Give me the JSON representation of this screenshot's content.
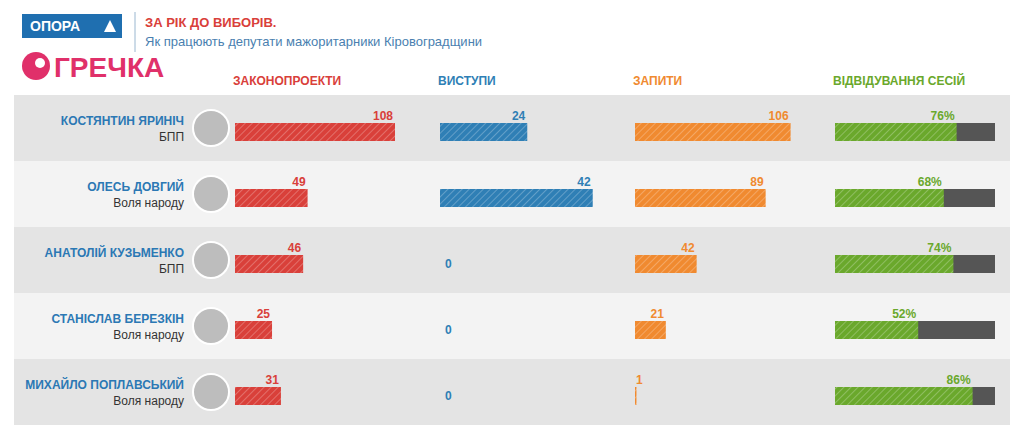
{
  "header": {
    "logo": "ОПОРА",
    "watermark": "ГРЕЧКА",
    "title": "ЗА РІК ДО ВИБОРІВ.",
    "subtitle": "Як працюють депутати мажоритарники Кіровоградщини"
  },
  "chart_data": [
    {
      "type": "bar",
      "orientation": "horizontal",
      "title": "ЗАКОНОПРОЕКТИ",
      "categories": [
        "КОСТЯНТИН ЯРИНІЧ",
        "ОЛЕСЬ ДОВГИЙ",
        "АНАТОЛІЙ КУЗЬМЕНКО",
        "СТАНІСЛАВ БЕРЕЗКІН",
        "МИХАЙЛО ПОПЛАВСЬКИЙ"
      ],
      "annotations": [
        "БПП",
        "Воля народу",
        "БПП",
        "Воля народу",
        "Воля народу"
      ],
      "values": [
        108,
        49,
        46,
        25,
        31
      ],
      "color": "#d9403a",
      "xlim": [
        0,
        108
      ],
      "data_labels": true,
      "tick_labels": false
    },
    {
      "type": "bar",
      "orientation": "horizontal",
      "title": "ВИСТУПИ",
      "categories": [
        null,
        null,
        null,
        null,
        null
      ],
      "values": [
        24,
        42,
        0,
        0,
        0
      ],
      "color": "#2f7fb5",
      "xlim": [
        0,
        44
      ],
      "data_labels": true,
      "tick_labels": false
    },
    {
      "type": "bar",
      "orientation": "horizontal",
      "title": "ЗАПИТИ",
      "categories": [
        null,
        null,
        null,
        null,
        null
      ],
      "values": [
        106,
        89,
        42,
        21,
        1
      ],
      "color": "#f08a30",
      "xlim": [
        0,
        109
      ],
      "data_labels": true,
      "tick_labels": false
    },
    {
      "type": "bar",
      "orientation": "horizontal",
      "title": "ВІДВІДУВАННЯ СЕСІЙ",
      "categories": [
        null,
        null,
        null,
        null,
        null
      ],
      "values": [
        76,
        68,
        74,
        52,
        86
      ],
      "value_labels": [
        "76%",
        "68%",
        "74%",
        "52%",
        "86%"
      ],
      "color": "#6aa82c",
      "xlim": [
        0,
        100
      ],
      "data_labels": true,
      "tick_labels": false
    }
  ]
}
